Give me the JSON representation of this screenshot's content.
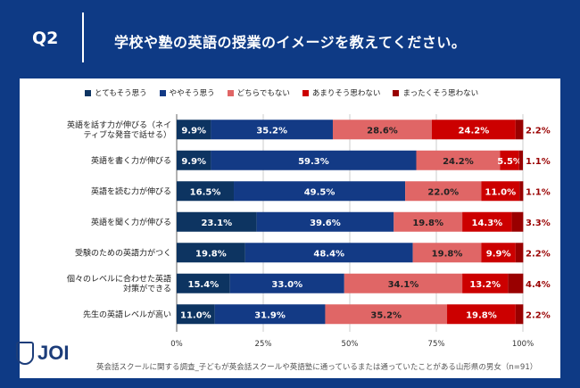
{
  "header": {
    "q": "Q2",
    "title": "学校や塾の英語の授業のイメージを教えてください。"
  },
  "logo": {
    "text": "JOI"
  },
  "footnote": "英会話スクールに関する調査_子どもが英会話スクールや英語塾に通っているまたは通っていたことがある山形県の男女（n=91）",
  "chart_data": {
    "type": "bar",
    "orientation": "horizontal",
    "stacked": true,
    "legend_position": "top",
    "grid": true,
    "xlim": [
      0,
      100
    ],
    "xticks": [
      "0%",
      "25%",
      "50%",
      "75%",
      "100%"
    ],
    "categories": [
      [
        "英語を話す力が伸びる（ネイ",
        "ティブな発音で話せる）"
      ],
      [
        "英語を書く力が伸びる"
      ],
      [
        "英語を読む力が伸びる"
      ],
      [
        "英語を聞く力が伸びる"
      ],
      [
        "受験のための英語力がつく"
      ],
      [
        "個々のレベルに合わせた英語",
        "対策ができる"
      ],
      [
        "先生の英語レベルが高い"
      ]
    ],
    "series": [
      {
        "name": "とてもそう思う",
        "color": "#0d3461",
        "values": [
          9.9,
          9.9,
          16.5,
          23.1,
          19.8,
          15.4,
          11.0
        ]
      },
      {
        "name": "ややそう思う",
        "color": "#133a85",
        "values": [
          35.2,
          59.3,
          49.5,
          39.6,
          48.4,
          33.0,
          31.9
        ]
      },
      {
        "name": "どちらでもない",
        "color": "#e06666",
        "values": [
          28.6,
          24.2,
          22.0,
          19.8,
          19.8,
          34.1,
          35.2
        ]
      },
      {
        "name": "あまりそう思わない",
        "color": "#cc0000",
        "values": [
          24.2,
          5.5,
          11.0,
          14.3,
          9.9,
          13.2,
          19.8
        ]
      },
      {
        "name": "まったくそう思わない",
        "color": "#990000",
        "values": [
          2.2,
          1.1,
          1.1,
          3.3,
          2.2,
          4.4,
          2.2
        ]
      }
    ]
  }
}
